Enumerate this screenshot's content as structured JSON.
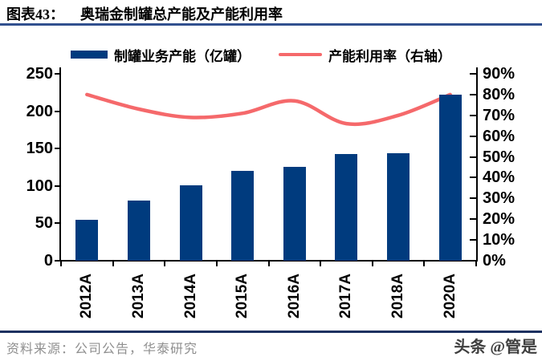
{
  "title": {
    "label": "图表43：",
    "text": "奥瑞金制罐总产能及产能利用率"
  },
  "colors": {
    "bar": "#003B7E",
    "line": "#F5696B",
    "title_rule": "#31508F",
    "footer_rule": "#1D3160",
    "axis": "#000000",
    "source_text": "#8F8F8F",
    "watermark": "#3F3F3F"
  },
  "chart_data": {
    "type": "bar+line",
    "categories": [
      "2012A",
      "2013A",
      "2014A",
      "2015A",
      "2016A",
      "2017A",
      "2018A",
      "2020A"
    ],
    "series": [
      {
        "name": "制罐业务产能（亿罐）",
        "type": "bar",
        "axis": "left",
        "values": [
          55,
          81,
          101,
          120,
          126,
          143,
          144,
          222
        ]
      },
      {
        "name": "产能利用率（右轴）",
        "type": "line",
        "axis": "right",
        "unit": "%",
        "values": [
          80,
          73,
          69,
          71,
          77,
          66,
          70,
          80
        ]
      }
    ],
    "left_axis": {
      "ticks": [
        "0",
        "50",
        "100",
        "150",
        "200",
        "250"
      ],
      "range": [
        0,
        250
      ]
    },
    "right_axis": {
      "ticks": [
        "0%",
        "10%",
        "20%",
        "30%",
        "40%",
        "50%",
        "60%",
        "70%",
        "80%",
        "90%"
      ],
      "range": [
        0,
        90
      ]
    },
    "grid": false,
    "legend_position": "top",
    "line_style": "smooth",
    "x_label_rotation": -90
  },
  "footer": {
    "source": "资料来源：公司公告，华泰研究",
    "watermark": "头条 @管是"
  }
}
